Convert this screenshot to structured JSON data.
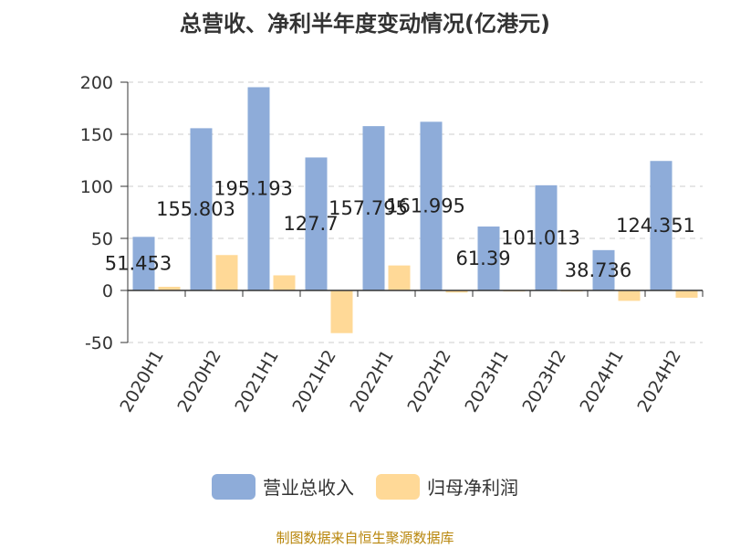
{
  "title": "总营收、净利半年度变动情况(亿港元)",
  "source": "制图数据来自恒生聚源数据库",
  "colors": {
    "revenue": "#8eacd9",
    "profit": "#ffd997",
    "grid": "#cccccc",
    "axis": "#333333"
  },
  "legend": [
    {
      "label": "营业总收入",
      "color": "#8eacd9"
    },
    {
      "label": "归母净利润",
      "color": "#ffd997"
    }
  ],
  "chart_data": {
    "type": "bar",
    "title": "总营收、净利半年度变动情况(亿港元)",
    "categories": [
      "2020H1",
      "2020H2",
      "2021H1",
      "2021H2",
      "2022H1",
      "2022H2",
      "2023H1",
      "2023H2",
      "2024H1",
      "2024H2"
    ],
    "series": [
      {
        "name": "营业总收入",
        "values": [
          51.453,
          155.803,
          195.193,
          127.7,
          157.795,
          161.995,
          61.39,
          101.013,
          38.736,
          124.351
        ]
      },
      {
        "name": "归母净利润",
        "values": [
          3.5,
          34,
          14.5,
          -41,
          24,
          -2,
          -1,
          -1,
          -10,
          -7
        ]
      }
    ],
    "data_labels": [
      "51.453",
      "155.803",
      "195.193",
      "127.7",
      "157.795",
      "161.995",
      "61.39",
      "101.013",
      "38.736",
      "124.351"
    ],
    "yticks": [
      200,
      150,
      100,
      50,
      0,
      -50
    ],
    "ylim": [
      -50,
      200
    ],
    "xlabel": "",
    "ylabel": "",
    "grid": true,
    "legend_position": "bottom"
  }
}
